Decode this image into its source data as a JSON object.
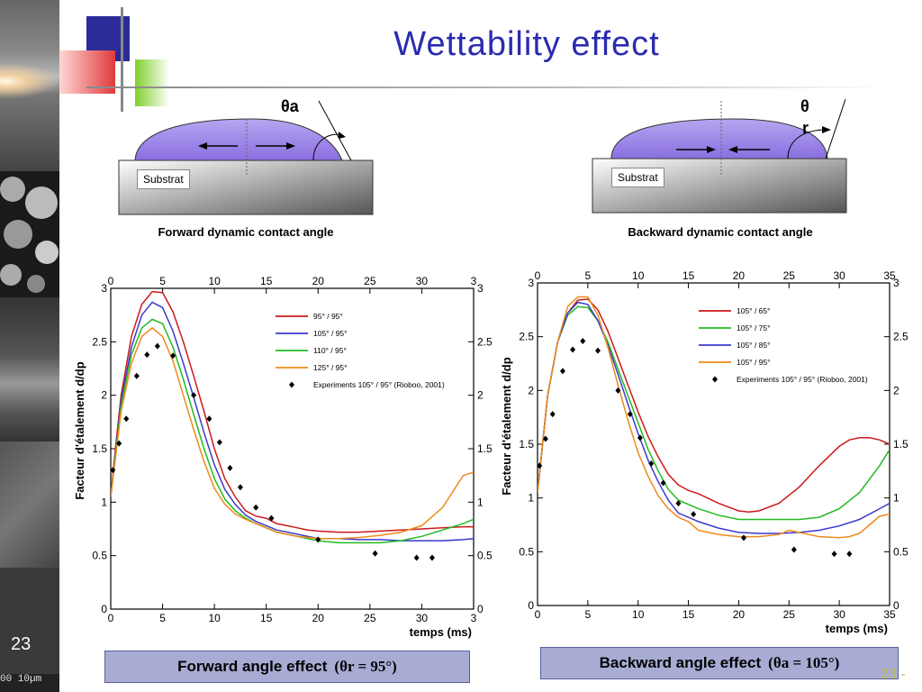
{
  "slide": {
    "title": "Wettability effect",
    "page_number": "23",
    "scale_text": "00  10µm",
    "footer_text": "23 -"
  },
  "diagrams": {
    "left": {
      "angle_label": "θa",
      "substrate_label": "Substrat",
      "caption": "Forward dynamic contact angle"
    },
    "right": {
      "angle_label_1": "θ",
      "angle_label_2": "r",
      "substrate_label": "Substrat",
      "caption": "Backward dynamic contact angle"
    }
  },
  "bottom_boxes": {
    "left": {
      "text": "Forward angle effect",
      "math": "(θr = 95°)"
    },
    "right": {
      "text": "Backward angle effect",
      "math": "(θa = 105°)"
    }
  },
  "colors": {
    "title": "#2b2bb0",
    "red": "#cc1a1a",
    "blue": "#3a3acc",
    "green": "#22bb22",
    "orange": "#ee8a1a",
    "drop": "#8a6fe0",
    "box_fill": "#a8acd4"
  },
  "chart_data": [
    {
      "type": "line",
      "xlabel": "temps (ms)",
      "ylabel": "Facteur d'étalement d/dp",
      "xlim": [
        0,
        35
      ],
      "ylim": [
        0,
        3
      ],
      "xticks": [
        "0",
        "5",
        "10",
        "15",
        "20",
        "25",
        "30",
        "3"
      ],
      "top_xticks": [
        "0",
        "5",
        "10",
        "15",
        "20",
        "25",
        "30",
        "3"
      ],
      "yticks": [
        "0",
        "0.5",
        "1",
        "1.5",
        "2",
        "2.5",
        "3"
      ],
      "legend_position": "top-right",
      "series": [
        {
          "name": "95° / 95°",
          "color": "#cc1a1a",
          "x": [
            0,
            0.5,
            1,
            2,
            3,
            4,
            5,
            6,
            7,
            8,
            9,
            10,
            11,
            12,
            13,
            14,
            15,
            16,
            17,
            18,
            19,
            20,
            22,
            24,
            26,
            28,
            30,
            32,
            34,
            35
          ],
          "y": [
            1.05,
            1.55,
            2.0,
            2.55,
            2.85,
            2.97,
            2.96,
            2.78,
            2.5,
            2.18,
            1.85,
            1.5,
            1.22,
            1.05,
            0.92,
            0.87,
            0.85,
            0.8,
            0.78,
            0.76,
            0.74,
            0.73,
            0.72,
            0.72,
            0.73,
            0.74,
            0.75,
            0.76,
            0.77,
            0.77
          ]
        },
        {
          "name": "105° / 95°",
          "color": "#3a3acc",
          "x": [
            0,
            0.5,
            1,
            2,
            3,
            4,
            5,
            6,
            7,
            8,
            9,
            10,
            11,
            12,
            13,
            14,
            15,
            16,
            18,
            20,
            22,
            24,
            26,
            28,
            30,
            32,
            34,
            35
          ],
          "y": [
            1.05,
            1.5,
            1.95,
            2.45,
            2.75,
            2.87,
            2.82,
            2.6,
            2.3,
            1.98,
            1.65,
            1.35,
            1.12,
            0.98,
            0.88,
            0.82,
            0.78,
            0.74,
            0.7,
            0.66,
            0.66,
            0.65,
            0.65,
            0.64,
            0.64,
            0.64,
            0.65,
            0.66
          ]
        },
        {
          "name": "110° / 95°",
          "color": "#22bb22",
          "x": [
            0,
            0.5,
            1,
            2,
            3,
            4,
            5,
            6,
            7,
            8,
            9,
            10,
            11,
            12,
            13,
            14,
            15,
            16,
            18,
            20,
            22,
            24,
            26,
            28,
            30,
            32,
            34,
            35
          ],
          "y": [
            1.05,
            1.48,
            1.9,
            2.38,
            2.63,
            2.71,
            2.67,
            2.45,
            2.15,
            1.82,
            1.5,
            1.22,
            1.03,
            0.92,
            0.85,
            0.8,
            0.76,
            0.72,
            0.68,
            0.64,
            0.62,
            0.62,
            0.62,
            0.64,
            0.68,
            0.74,
            0.8,
            0.84
          ]
        },
        {
          "name": "125° / 95°",
          "color": "#ee8a1a",
          "x": [
            0,
            0.5,
            1,
            2,
            3,
            4,
            5,
            6,
            7,
            8,
            9,
            10,
            11,
            12,
            13,
            14,
            15,
            16,
            18,
            20,
            22,
            24,
            26,
            28,
            30,
            32,
            33,
            34,
            35
          ],
          "y": [
            1.05,
            1.45,
            1.85,
            2.3,
            2.55,
            2.63,
            2.55,
            2.32,
            2.0,
            1.68,
            1.38,
            1.13,
            0.98,
            0.89,
            0.84,
            0.8,
            0.76,
            0.72,
            0.68,
            0.66,
            0.66,
            0.67,
            0.69,
            0.72,
            0.78,
            0.95,
            1.1,
            1.25,
            1.28
          ]
        },
        {
          "name": "Experiments 105° / 95° (Rioboo, 2001)",
          "color": "#000000",
          "marker": "diamond",
          "x": [
            0.2,
            0.8,
            1.5,
            2.5,
            3.5,
            4.5,
            6,
            8,
            9.5,
            10.5,
            11.5,
            12.5,
            14,
            15.5,
            20,
            25.5,
            29.5,
            31
          ],
          "y": [
            1.3,
            1.55,
            1.78,
            2.18,
            2.38,
            2.46,
            2.37,
            2.0,
            1.78,
            1.56,
            1.32,
            1.14,
            0.95,
            0.85,
            0.65,
            0.52,
            0.48,
            0.48
          ]
        }
      ]
    },
    {
      "type": "line",
      "xlabel": "temps (ms)",
      "ylabel": "Facteur d'étalement d/dp",
      "xlim": [
        0,
        35
      ],
      "ylim": [
        0,
        3
      ],
      "xticks": [
        "0",
        "5",
        "10",
        "15",
        "20",
        "25",
        "30",
        "35"
      ],
      "top_xticks": [
        "0",
        "5",
        "10",
        "15",
        "20",
        "25",
        "30",
        "35"
      ],
      "yticks": [
        "0",
        "0.5",
        "1",
        "1.5",
        "2",
        "2.5",
        "3"
      ],
      "legend_position": "top-right",
      "series": [
        {
          "name": "105° / 65°",
          "color": "#cc1a1a",
          "x": [
            0,
            0.5,
            1,
            2,
            3,
            4,
            5,
            6,
            7,
            8,
            9,
            10,
            11,
            12,
            13,
            14,
            15,
            16,
            18,
            20,
            21,
            22,
            24,
            26,
            28,
            30,
            31,
            32,
            33,
            34,
            35
          ],
          "y": [
            1.05,
            1.5,
            1.95,
            2.45,
            2.72,
            2.84,
            2.85,
            2.75,
            2.55,
            2.3,
            2.05,
            1.8,
            1.57,
            1.38,
            1.22,
            1.12,
            1.07,
            1.04,
            0.95,
            0.88,
            0.87,
            0.88,
            0.95,
            1.1,
            1.3,
            1.48,
            1.54,
            1.56,
            1.56,
            1.54,
            1.5
          ]
        },
        {
          "name": "105° / 75°",
          "color": "#22bb22",
          "x": [
            0,
            0.5,
            1,
            2,
            3,
            4,
            5,
            6,
            7,
            8,
            9,
            10,
            11,
            12,
            13,
            14,
            15,
            16,
            18,
            20,
            22,
            24,
            26,
            28,
            30,
            32,
            34,
            35
          ],
          "y": [
            1.05,
            1.5,
            1.95,
            2.45,
            2.7,
            2.78,
            2.77,
            2.65,
            2.45,
            2.2,
            1.95,
            1.7,
            1.45,
            1.25,
            1.08,
            0.98,
            0.94,
            0.9,
            0.84,
            0.8,
            0.8,
            0.8,
            0.8,
            0.82,
            0.9,
            1.05,
            1.3,
            1.45
          ]
        },
        {
          "name": "105° / 85°",
          "color": "#3a3acc",
          "x": [
            0,
            0.5,
            1,
            2,
            3,
            4,
            5,
            6,
            7,
            8,
            9,
            10,
            11,
            12,
            13,
            14,
            15,
            16,
            18,
            20,
            22,
            24,
            26,
            28,
            30,
            32,
            34,
            35
          ],
          "y": [
            1.05,
            1.5,
            1.95,
            2.45,
            2.72,
            2.82,
            2.8,
            2.65,
            2.42,
            2.15,
            1.87,
            1.6,
            1.35,
            1.15,
            0.98,
            0.86,
            0.82,
            0.78,
            0.72,
            0.68,
            0.67,
            0.67,
            0.68,
            0.7,
            0.74,
            0.8,
            0.9,
            0.95
          ]
        },
        {
          "name": "105° / 95°",
          "color": "#ee8a1a",
          "x": [
            0,
            0.5,
            1,
            2,
            3,
            4,
            5,
            6,
            7,
            8,
            9,
            10,
            11,
            12,
            13,
            14,
            15,
            16,
            18,
            20,
            22,
            24,
            25,
            26,
            28,
            30,
            31,
            32,
            33,
            34,
            35
          ],
          "y": [
            1.05,
            1.5,
            1.95,
            2.45,
            2.78,
            2.87,
            2.87,
            2.7,
            2.4,
            2.05,
            1.72,
            1.42,
            1.2,
            1.02,
            0.9,
            0.82,
            0.78,
            0.7,
            0.66,
            0.64,
            0.64,
            0.66,
            0.7,
            0.68,
            0.64,
            0.63,
            0.64,
            0.67,
            0.75,
            0.83,
            0.85
          ]
        },
        {
          "name": "Experiments 105° / 95° (Rioboo, 2001)",
          "color": "#000000",
          "marker": "diamond",
          "x": [
            0.2,
            0.8,
            1.5,
            2.5,
            3.5,
            4.5,
            6,
            8,
            9.2,
            10.2,
            11.3,
            12.5,
            14,
            15.5,
            20.5,
            25.5,
            29.5,
            31
          ],
          "y": [
            1.3,
            1.55,
            1.78,
            2.18,
            2.38,
            2.46,
            2.37,
            2.0,
            1.78,
            1.56,
            1.32,
            1.14,
            0.95,
            0.85,
            0.63,
            0.52,
            0.48,
            0.48
          ]
        }
      ]
    }
  ]
}
